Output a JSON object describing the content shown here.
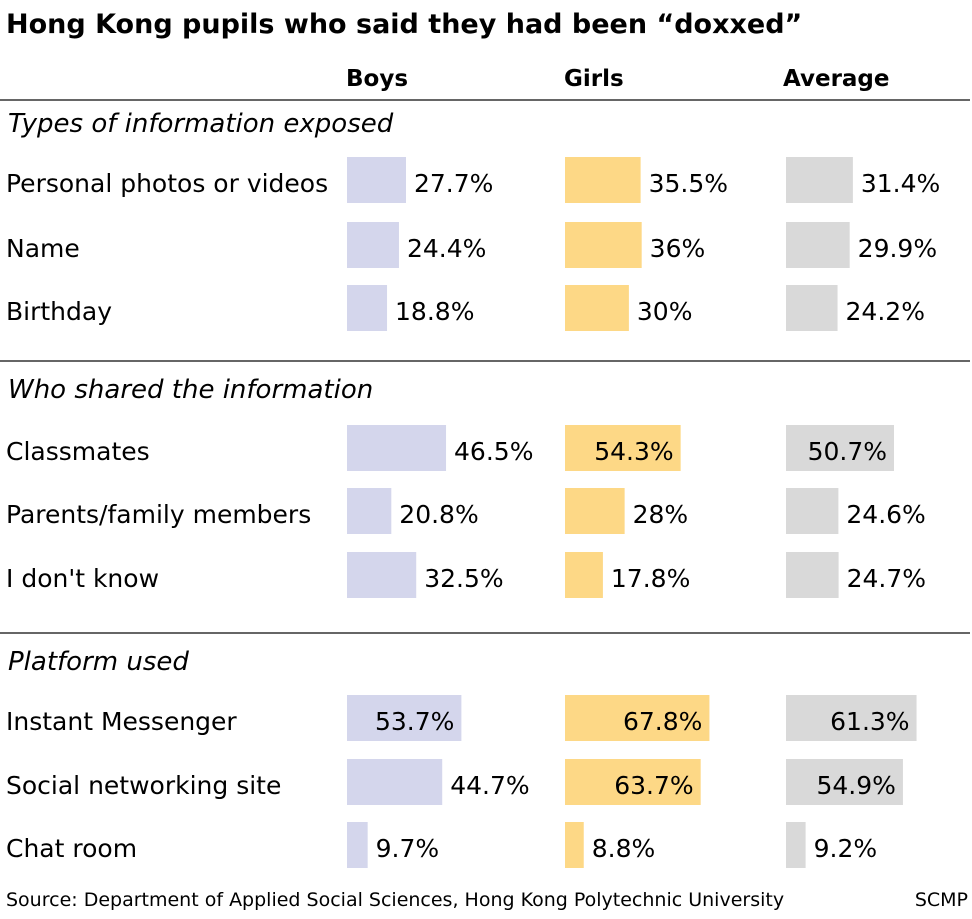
{
  "title": "Hong Kong pupils who said they had been “doxxed”",
  "source": "Source: Department of Applied Social Sciences, Hong Kong Polytechnic University",
  "credit": "SCMP",
  "colors": {
    "boys": "#d4d6ec",
    "girls": "#fdd886",
    "average": "#d9d9d9"
  },
  "chart_data": {
    "type": "bar",
    "orientation": "horizontal",
    "columns": [
      "Boys",
      "Girls",
      "Average"
    ],
    "groups": [
      {
        "title": "Types of information exposed",
        "rows": [
          {
            "label": "Personal photos or videos",
            "values": [
              27.7,
              35.5,
              31.4
            ],
            "display": [
              "27.7%",
              "35.5%",
              "31.4%"
            ]
          },
          {
            "label": "Name",
            "values": [
              24.4,
              36,
              29.9
            ],
            "display": [
              "24.4%",
              "36%",
              "29.9%"
            ]
          },
          {
            "label": "Birthday",
            "values": [
              18.8,
              30,
              24.2
            ],
            "display": [
              "18.8%",
              "30%",
              "24.2%"
            ]
          }
        ]
      },
      {
        "title": "Who shared the information",
        "rows": [
          {
            "label": "Classmates",
            "values": [
              46.5,
              54.3,
              50.7
            ],
            "display": [
              "46.5%",
              "54.3%",
              "50.7%"
            ]
          },
          {
            "label": "Parents/family members",
            "values": [
              20.8,
              28,
              24.6
            ],
            "display": [
              "20.8%",
              "28%",
              "24.6%"
            ]
          },
          {
            "label": "I don't know",
            "values": [
              32.5,
              17.8,
              24.7
            ],
            "display": [
              "32.5%",
              "17.8%",
              "24.7%"
            ]
          }
        ]
      },
      {
        "title": "Platform used",
        "rows": [
          {
            "label": "Instant Messenger",
            "values": [
              53.7,
              67.8,
              61.3
            ],
            "display": [
              "53.7%",
              "67.8%",
              "61.3%"
            ]
          },
          {
            "label": "Social networking site",
            "values": [
              44.7,
              63.7,
              54.9
            ],
            "display": [
              "44.7%",
              "63.7%",
              "54.9%"
            ]
          },
          {
            "label": "Chat room",
            "values": [
              9.7,
              8.8,
              9.2
            ],
            "display": [
              "9.7%",
              "8.8%",
              "9.2%"
            ]
          }
        ]
      }
    ]
  }
}
